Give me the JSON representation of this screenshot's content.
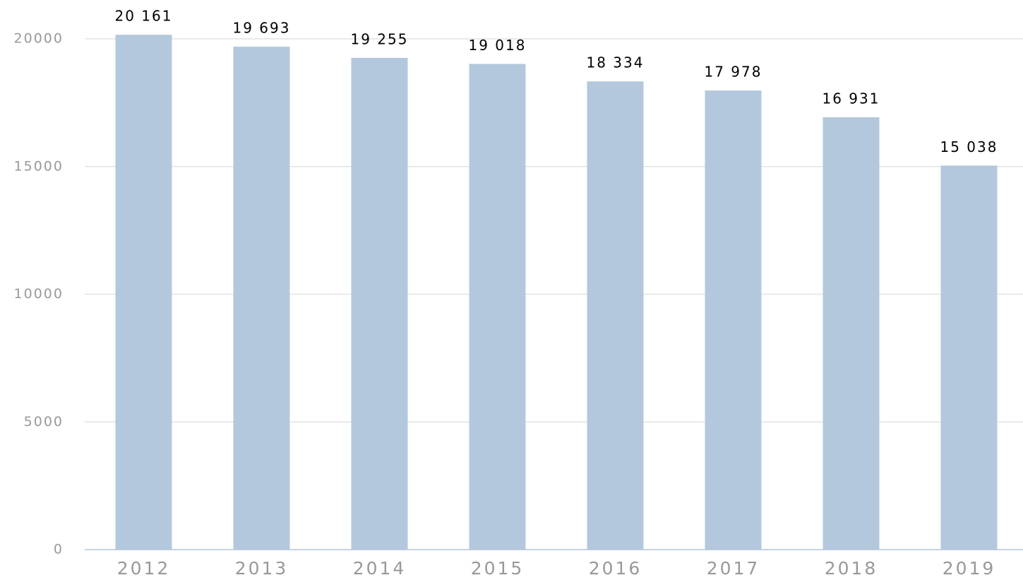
{
  "chart_data": {
    "type": "bar",
    "categories": [
      "2012",
      "2013",
      "2014",
      "2015",
      "2016",
      "2017",
      "2018",
      "2019"
    ],
    "values": [
      20161,
      19693,
      19255,
      19018,
      18334,
      17978,
      16931,
      15038
    ],
    "value_labels": [
      "20 161",
      "19 693",
      "19 255",
      "19 018",
      "18 334",
      "17 978",
      "16 931",
      "15 038"
    ],
    "color": "#b3c8dc",
    "ylim": [
      0,
      20000
    ],
    "yticks": [
      0,
      5000,
      10000,
      15000,
      20000
    ],
    "grid": true
  }
}
